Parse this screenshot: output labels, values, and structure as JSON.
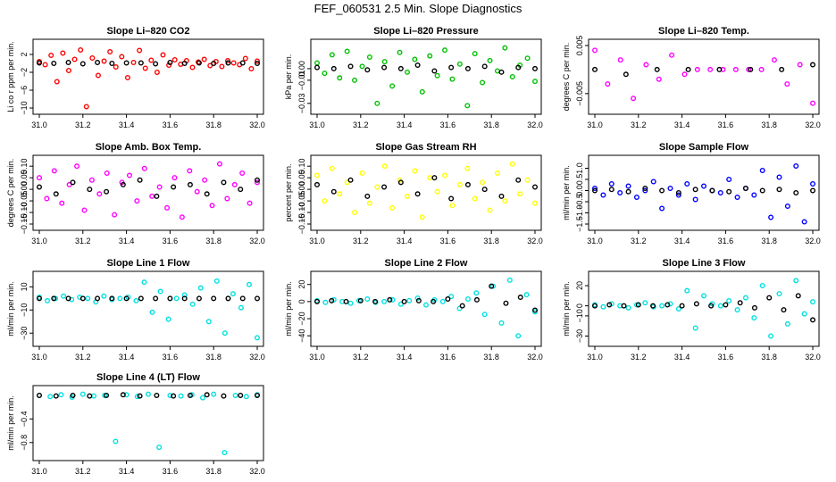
{
  "figure_title": "FEF_060531  2.5 Min. Slope Diagnostics",
  "chart_data": [
    {
      "type": "scatter",
      "title": "Slope Li–820 CO2",
      "ylabel": "Li co r ppm per min.",
      "xlim": [
        31.0,
        32.0
      ],
      "ylim": [
        -10,
        4
      ],
      "xticks": [
        "31.0",
        "31.2",
        "31.4",
        "31.6",
        "31.8",
        "32.0"
      ],
      "yticks": [
        "2",
        "−2",
        "−6",
        "−10"
      ],
      "ytick_values": [
        2,
        -2,
        -6,
        -10
      ],
      "color": "#ff0000",
      "series": [
        {
          "name": "Slope",
          "values": [
            0.4,
            -0.3,
            1.8,
            -4.1,
            2.3,
            -1.6,
            0.9,
            3.0,
            -9.7,
            1.2,
            -2.7,
            0.5,
            2.6,
            -0.8,
            1.5,
            -3.2,
            0.2,
            2.9,
            -1.1,
            0.7,
            -2.0,
            1.9,
            -0.4,
            0.8,
            -0.2,
            0.6,
            -0.9,
            0.3,
            0.9,
            -0.5,
            0.4,
            -0.7,
            0.6,
            0.1,
            -0.3,
            1.1,
            -1.2,
            0.5
          ]
        },
        {
          "name": "Mean",
          "values": [
            0.1,
            0.0,
            0.2,
            -0.1,
            0.2,
            0.0,
            0.1,
            0.1,
            -0.1,
            0.2,
            0.0,
            0.1,
            0.0,
            0.1,
            0.1,
            0.0
          ]
        }
      ]
    },
    {
      "type": "scatter",
      "title": "Slope Li–820 Pressure",
      "ylabel": "kPa per min.",
      "xlim": [
        31.0,
        32.0
      ],
      "ylim": [
        -0.034,
        0.02
      ],
      "xticks": [
        "31.0",
        "31.2",
        "31.4",
        "31.6",
        "31.8",
        "32.0"
      ],
      "yticks": [
        "0.00",
        "−0.01",
        "−0.03"
      ],
      "ytick_values": [
        0.0,
        -0.01,
        -0.03
      ],
      "color": "#00c000",
      "series": [
        {
          "name": "Slope",
          "values": [
            0.005,
            -0.004,
            0.012,
            -0.008,
            0.015,
            -0.01,
            0.002,
            0.01,
            -0.03,
            0.006,
            -0.015,
            0.014,
            -0.003,
            0.008,
            -0.02,
            0.011,
            -0.006,
            0.016,
            -0.009,
            0.004,
            -0.032,
            0.013,
            -0.012,
            0.007,
            -0.002,
            0.018,
            -0.007,
            0.003,
            0.009,
            -0.011
          ]
        },
        {
          "name": "Mean",
          "values": [
            0.001,
            0.0,
            0.002,
            -0.001,
            0.001,
            0.0,
            0.003,
            -0.002,
            0.001,
            0.0,
            0.002,
            -0.003,
            0.001,
            0.0
          ]
        }
      ]
    },
    {
      "type": "scatter",
      "title": "Slope Li–820 Temp.",
      "ylabel": "degrees C per min.",
      "xlim": [
        31.0,
        32.0
      ],
      "ylim": [
        -0.008,
        0.005
      ],
      "xticks": [
        "31.0",
        "31.2",
        "31.4",
        "31.6",
        "31.8",
        "32.0"
      ],
      "yticks": [
        "0.005",
        "−0.005"
      ],
      "ytick_values": [
        0.005,
        -0.005
      ],
      "color": "#ff00ff",
      "series": [
        {
          "name": "Slope",
          "values": [
            0.004,
            -0.003,
            0.002,
            -0.006,
            0.001,
            -0.002,
            0.003,
            -0.001,
            0.0,
            0.0,
            0.0,
            0.0,
            0.0,
            0.0,
            0.002,
            -0.003,
            0.001,
            -0.007
          ]
        },
        {
          "name": "Mean",
          "values": [
            0.0,
            -0.001,
            0.0,
            0.0,
            0.0,
            0.0,
            0.0,
            0.001
          ]
        }
      ]
    },
    {
      "type": "scatter",
      "title": "Slope Amb. Box Temp.",
      "ylabel": "degrees C per min.",
      "xlim": [
        31.0,
        32.0
      ],
      "ylim": [
        -0.15,
        0.12
      ],
      "xticks": [
        "31.0",
        "31.2",
        "31.4",
        "31.6",
        "31.8",
        "32.0"
      ],
      "yticks": [
        "0.10",
        "0.05",
        "0.00",
        "−0.05",
        "−0.10",
        "−0.15"
      ],
      "ytick_values": [
        0.1,
        0.05,
        0.0,
        -0.05,
        -0.1,
        -0.15
      ],
      "color": "#ff00ff",
      "series": [
        {
          "name": "Slope",
          "values": [
            0.05,
            -0.04,
            0.08,
            -0.06,
            0.02,
            0.1,
            -0.09,
            0.04,
            -0.02,
            0.07,
            -0.11,
            0.03,
            0.06,
            -0.05,
            0.09,
            -0.03,
            0.01,
            -0.08,
            0.05,
            -0.12,
            0.08,
            -0.01,
            0.04,
            -0.07,
            0.11,
            -0.04,
            0.02,
            0.07,
            -0.06,
            0.03
          ]
        },
        {
          "name": "Mean",
          "values": [
            0.01,
            -0.02,
            0.03,
            0.0,
            -0.01,
            0.02,
            0.04,
            -0.03,
            0.01,
            0.02,
            -0.02,
            0.03,
            0.0,
            0.04
          ]
        }
      ]
    },
    {
      "type": "scatter",
      "title": "Slope Gas Stream RH",
      "ylabel": "percent per min.",
      "xlim": [
        31.0,
        32.0
      ],
      "ylim": [
        -0.15,
        0.12
      ],
      "xticks": [
        "31.0",
        "31.2",
        "31.4",
        "31.6",
        "31.8",
        "32.0"
      ],
      "yticks": [
        "0.10",
        "0.05",
        "0.00",
        "−0.05",
        "−0.10",
        "−0.15"
      ],
      "ytick_values": [
        0.1,
        0.05,
        0.0,
        -0.05,
        -0.1,
        -0.15
      ],
      "color": "#ffff00",
      "series": [
        {
          "name": "Slope",
          "values": [
            0.06,
            -0.05,
            0.09,
            -0.02,
            0.03,
            -0.1,
            0.07,
            -0.06,
            0.01,
            0.1,
            -0.08,
            0.04,
            -0.03,
            0.08,
            -0.12,
            0.05,
            -0.01,
            0.06,
            -0.07,
            0.02,
            0.09,
            -0.04,
            0.03,
            -0.09,
            0.07,
            -0.05,
            0.11,
            -0.02,
            0.04,
            -0.06
          ]
        },
        {
          "name": "Mean",
          "values": [
            0.02,
            -0.01,
            0.04,
            -0.03,
            0.01,
            0.03,
            -0.02,
            0.05,
            -0.04,
            0.02,
            0.0,
            -0.03,
            0.04,
            0.01
          ]
        }
      ]
    },
    {
      "type": "scatter",
      "title": "Slope Sample Flow",
      "ylabel": "ml/min per min.",
      "xlim": [
        31.0,
        32.0
      ],
      "ylim": [
        -1.5,
        1.3
      ],
      "xticks": [
        "31.0",
        "31.2",
        "31.4",
        "31.6",
        "31.8",
        "32.0"
      ],
      "yticks": [
        "1.0",
        "0.5",
        "0.0",
        "−0.5",
        "−1.0",
        "−1.5"
      ],
      "ytick_values": [
        1.0,
        0.5,
        0.0,
        -0.5,
        -1.0,
        -1.5
      ],
      "color": "#0000ff",
      "series": [
        {
          "name": "Slope",
          "values": [
            0.1,
            -0.2,
            0.3,
            -0.1,
            0.2,
            -0.3,
            0.0,
            0.4,
            -0.8,
            0.1,
            -0.2,
            0.3,
            -0.4,
            0.2,
            0.0,
            -0.1,
            0.5,
            -0.3,
            0.1,
            -0.2,
            0.9,
            -1.2,
            0.6,
            -0.7,
            1.1,
            -1.4,
            0.3
          ]
        },
        {
          "name": "Mean",
          "values": [
            0.0,
            0.05,
            -0.05,
            0.1,
            0.0,
            -0.1,
            0.05,
            0.0,
            -0.05,
            0.1,
            0.0,
            0.05,
            -0.1,
            0.0
          ]
        }
      ]
    },
    {
      "type": "scatter",
      "title": "Slope Line 1 Flow",
      "ylabel": "ml/min per min.",
      "xlim": [
        31.0,
        32.0
      ],
      "ylim": [
        -36,
        18
      ],
      "xticks": [
        "31.0",
        "31.2",
        "31.4",
        "31.6",
        "31.8",
        "32.0"
      ],
      "yticks": [
        "10",
        "−10",
        "−30"
      ],
      "ytick_values": [
        10,
        -10,
        -30
      ],
      "color": "#00e0e0",
      "series": [
        {
          "name": "Slope",
          "values": [
            1,
            -2,
            0,
            2,
            -1,
            1,
            0,
            -3,
            2,
            -1,
            0,
            1,
            -2,
            14,
            -12,
            6,
            -18,
            0,
            3,
            -5,
            9,
            -20,
            15,
            -30,
            4,
            -8,
            12,
            -34
          ]
        },
        {
          "name": "Mean",
          "values": [
            0,
            0,
            0,
            0,
            0,
            0,
            0,
            0,
            0,
            0,
            0,
            0,
            0,
            0,
            0,
            0
          ]
        }
      ]
    },
    {
      "type": "scatter",
      "title": "Slope Line 2 Flow",
      "ylabel": "ml/min per min.",
      "xlim": [
        31.0,
        32.0
      ],
      "ylim": [
        -45,
        28
      ],
      "xticks": [
        "31.0",
        "31.2",
        "31.4",
        "31.6",
        "31.8",
        "32.0"
      ],
      "yticks": [
        "20",
        "0",
        "−20",
        "−40"
      ],
      "ytick_values": [
        20,
        0,
        -20,
        -40
      ],
      "color": "#00e0e0",
      "series": [
        {
          "name": "Slope",
          "values": [
            1,
            -1,
            2,
            0,
            -2,
            1,
            3,
            -1,
            0,
            2,
            -3,
            1,
            4,
            -4,
            2,
            0,
            6,
            -8,
            3,
            10,
            -15,
            18,
            -25,
            25,
            -40,
            8,
            -12
          ]
        },
        {
          "name": "Mean",
          "values": [
            0,
            1,
            0,
            1,
            0,
            2,
            0,
            1,
            0,
            3,
            -5,
            2,
            18,
            -2,
            5,
            -10
          ]
        }
      ]
    },
    {
      "type": "scatter",
      "title": "Slope Line 3 Flow",
      "ylabel": "ml/min per min.",
      "xlim": [
        31.0,
        32.0
      ],
      "ylim": [
        -34,
        28
      ],
      "xticks": [
        "31.0",
        "31.2",
        "31.4",
        "31.6",
        "31.8",
        "32.0"
      ],
      "yticks": [
        "20",
        "0",
        "−10",
        "−30"
      ],
      "ytick_values": [
        20,
        0,
        -10,
        -30
      ],
      "color": "#00e0e0",
      "series": [
        {
          "name": "Slope",
          "values": [
            1,
            -1,
            2,
            0,
            -2,
            1,
            3,
            -1,
            0,
            2,
            -3,
            15,
            -22,
            10,
            2,
            0,
            5,
            -4,
            8,
            -12,
            20,
            -30,
            12,
            -18,
            25,
            -8,
            4
          ]
        },
        {
          "name": "Mean",
          "values": [
            0,
            1,
            0,
            1,
            0,
            1,
            0,
            2,
            0,
            1,
            3,
            -2,
            8,
            -4,
            10,
            -14
          ]
        }
      ]
    },
    {
      "type": "scatter",
      "title": "Slope Line 4 (LT) Flow",
      "ylabel": "ml/min per min.",
      "xlim": [
        31.0,
        32.0
      ],
      "ylim": [
        -1.0,
        0.06
      ],
      "xticks": [
        "31.0",
        "31.2",
        "31.4",
        "31.6",
        "31.8",
        "32.0"
      ],
      "yticks": [
        "−0.4",
        "−0.8"
      ],
      "ytick_values": [
        -0.4,
        -0.8
      ],
      "color": "#00e0e0",
      "series": [
        {
          "name": "Slope",
          "values": [
            0.0,
            -0.02,
            0.01,
            -0.03,
            0.02,
            -0.01,
            0.0,
            -0.78,
            0.01,
            -0.02,
            0.02,
            -0.88,
            0.0,
            -0.01,
            0.01,
            -0.04,
            0.02,
            -0.97,
            0.0,
            -0.02,
            0.01
          ]
        },
        {
          "name": "Mean",
          "values": [
            0.0,
            -0.01,
            0.0,
            -0.01,
            0.0,
            0.01,
            -0.01,
            0.0,
            -0.01,
            0.0,
            0.01,
            -0.01,
            0.0,
            0.0
          ]
        }
      ]
    }
  ]
}
